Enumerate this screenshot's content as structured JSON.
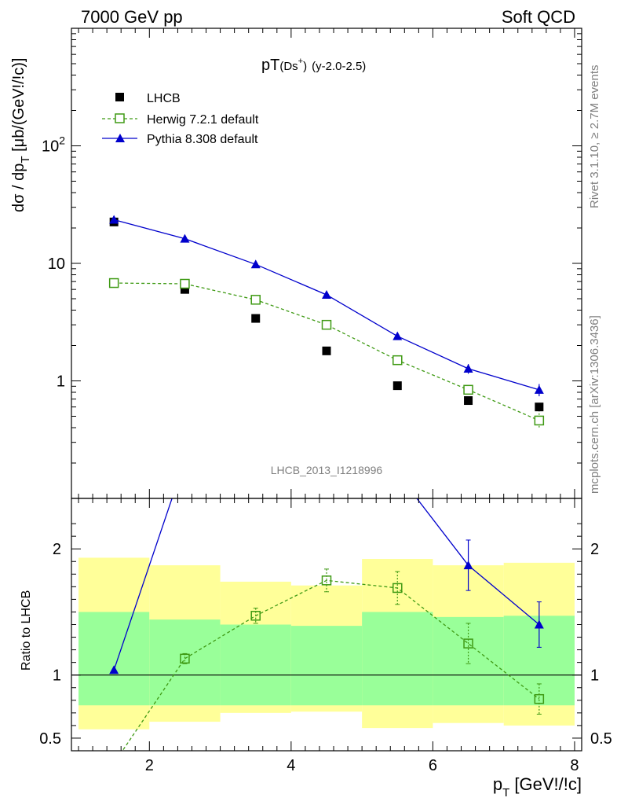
{
  "header": {
    "left": "7000 GeV pp",
    "right": "Soft QCD"
  },
  "side_text": {
    "rivet": "Rivet 3.1.10, ≥ 2.7M events",
    "mcplots": "mcplots.cern.ch [arXiv:1306.3436]"
  },
  "analysis_id": "LHCB_2013_I1218996",
  "chart_data": [
    {
      "type": "scatter",
      "title_main": "pT",
      "title_particle": "(Ds",
      "title_sup": "+",
      "title_close": ")",
      "title_range": "(y-2.0-2.5)",
      "ylabel_main": "dσ / dp",
      "ylabel_sub": "T",
      "ylabel_unit": " [μb/(GeV!/!c)]",
      "yscale": "log",
      "xlim": [
        0.9,
        8.1
      ],
      "ylim": [
        0.1,
        1000
      ],
      "yticks": [
        {
          "v": 1,
          "label": "1"
        },
        {
          "v": 10,
          "label": "10"
        },
        {
          "v": 100,
          "label_base": "10",
          "label_exp": "2"
        }
      ],
      "x": [
        1.5,
        2.5,
        3.5,
        4.5,
        5.5,
        6.5,
        7.5
      ],
      "series": [
        {
          "name": "LHCB",
          "color": "#000000",
          "marker": "square-filled",
          "line": "none",
          "values": [
            22.5,
            6.0,
            3.4,
            1.8,
            0.91,
            0.68,
            0.6
          ],
          "err": [
            0,
            0,
            0,
            0,
            0,
            0.04,
            0.05
          ]
        },
        {
          "name": "Herwig 7.2.1 default",
          "color": "#3f9a14",
          "marker": "square-open",
          "line": "dashed",
          "values": [
            6.8,
            6.7,
            4.9,
            3.0,
            1.5,
            0.84,
            0.46
          ],
          "err": [
            0.1,
            0.1,
            0.15,
            0.15,
            0.08,
            0.07,
            0.07
          ]
        },
        {
          "name": "Pythia 8.308 default",
          "color": "#0000cc",
          "marker": "triangle-filled",
          "line": "solid",
          "values": [
            23.5,
            16.2,
            9.8,
            5.4,
            2.4,
            1.27,
            0.84
          ],
          "err": [
            0.6,
            0.4,
            0.3,
            0.2,
            0.15,
            0.12,
            0.1
          ]
        }
      ],
      "legend_position": "top-left"
    },
    {
      "type": "scatter",
      "ylabel": "Ratio to LHCB",
      "xlabel_main": "p",
      "xlabel_sub": "T",
      "xlabel_unit": " [GeV!/!c]",
      "xlim": [
        0.9,
        8.1
      ],
      "ylim": [
        0.4,
        2.4
      ],
      "xticks": [
        2,
        4,
        6,
        8
      ],
      "yticks": [
        0.5,
        1,
        2
      ],
      "reference_line": 1,
      "bands": [
        {
          "x0": 1,
          "x1": 2,
          "yellow": [
            0.57,
            1.93
          ],
          "green": [
            0.76,
            1.5
          ]
        },
        {
          "x0": 2,
          "x1": 3,
          "yellow": [
            0.63,
            1.87
          ],
          "green": [
            0.76,
            1.44
          ]
        },
        {
          "x0": 3,
          "x1": 4,
          "yellow": [
            0.7,
            1.74
          ],
          "green": [
            0.76,
            1.4
          ]
        },
        {
          "x0": 4,
          "x1": 5,
          "yellow": [
            0.71,
            1.71
          ],
          "green": [
            0.76,
            1.39
          ]
        },
        {
          "x0": 5,
          "x1": 6,
          "yellow": [
            0.58,
            1.92
          ],
          "green": [
            0.76,
            1.5
          ]
        },
        {
          "x0": 6,
          "x1": 7,
          "yellow": [
            0.62,
            1.87
          ],
          "green": [
            0.76,
            1.46
          ]
        },
        {
          "x0": 7,
          "x1": 8,
          "yellow": [
            0.6,
            1.89
          ],
          "green": [
            0.76,
            1.47
          ]
        }
      ],
      "series": [
        {
          "name": "Herwig 7.2.1 default",
          "color": "#3f9a14",
          "marker": "square-open",
          "line": "dashed",
          "x": [
            2.5,
            3.5,
            4.5,
            5.5,
            6.5,
            7.5
          ],
          "values": [
            1.13,
            1.47,
            1.75,
            1.69,
            1.25,
            0.81
          ],
          "err": [
            0.04,
            0.06,
            0.09,
            0.13,
            0.16,
            0.12
          ],
          "offscale_start": {
            "x": 1.5,
            "value": 0.3
          }
        },
        {
          "name": "Pythia 8.308 default",
          "color": "#0000cc",
          "marker": "triangle-filled",
          "line": "solid",
          "x": [
            1.5,
            6.5,
            7.5
          ],
          "values": [
            1.04,
            1.87,
            1.4
          ],
          "err": [
            0.0,
            0.2,
            0.18
          ],
          "offscale_segments": [
            {
              "from": {
                "x": 1.5,
                "value": 1.04
              },
              "to": {
                "x": 2.5,
                "value": 2.7
              }
            },
            {
              "from": {
                "x": 5.5,
                "value": 2.6
              },
              "to": {
                "x": 6.5,
                "value": 1.87
              }
            }
          ]
        }
      ]
    }
  ]
}
